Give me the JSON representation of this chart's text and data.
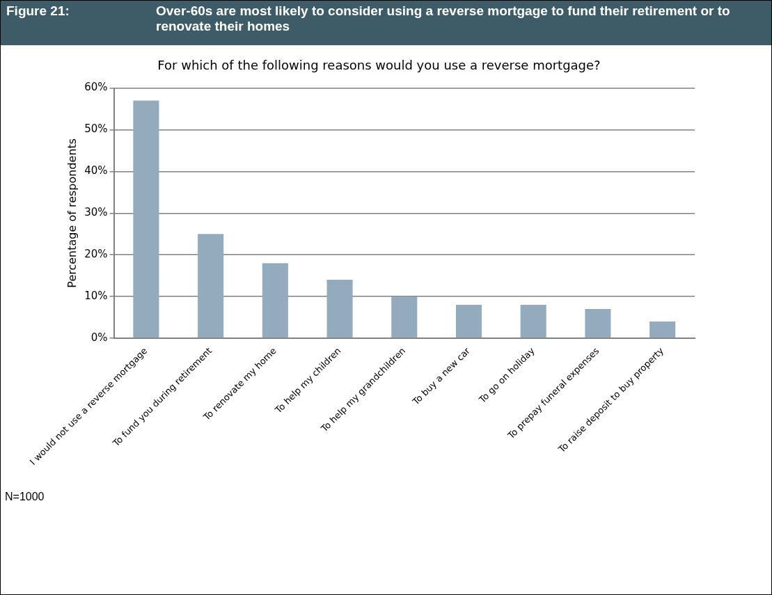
{
  "chart_data": {
    "type": "bar",
    "title": "Over-60s are most likely to consider using a reverse mortgage to fund their retirement or to renovate their homes",
    "subtitle": "For which of the following reasons would you use a reverse mortgage?",
    "ylabel": "Percentage of respondents",
    "categories": [
      "I would not use a reverse mortgage",
      "To fund you during retirement",
      "To renovate my home",
      "To help my children",
      "To help my grandchildren",
      "To buy a new car",
      "To go on holiday",
      "To prepay funeral expenses",
      "To raise deposit to buy property"
    ],
    "values": [
      57,
      25,
      18,
      14,
      10,
      8,
      8,
      7,
      4
    ],
    "color": "#93abbd",
    "ylim": [
      0,
      60
    ],
    "yticks": [
      {
        "value": 0,
        "label": "0%"
      },
      {
        "value": 10,
        "label": "10%"
      },
      {
        "value": 20,
        "label": "20%"
      },
      {
        "value": 30,
        "label": "30%"
      },
      {
        "value": 40,
        "label": "40%"
      },
      {
        "value": 50,
        "label": "50%"
      },
      {
        "value": 60,
        "label": "60%"
      }
    ],
    "grid": "y",
    "legend": false,
    "annotations": [
      "Figure 21:",
      "N=1000"
    ]
  }
}
